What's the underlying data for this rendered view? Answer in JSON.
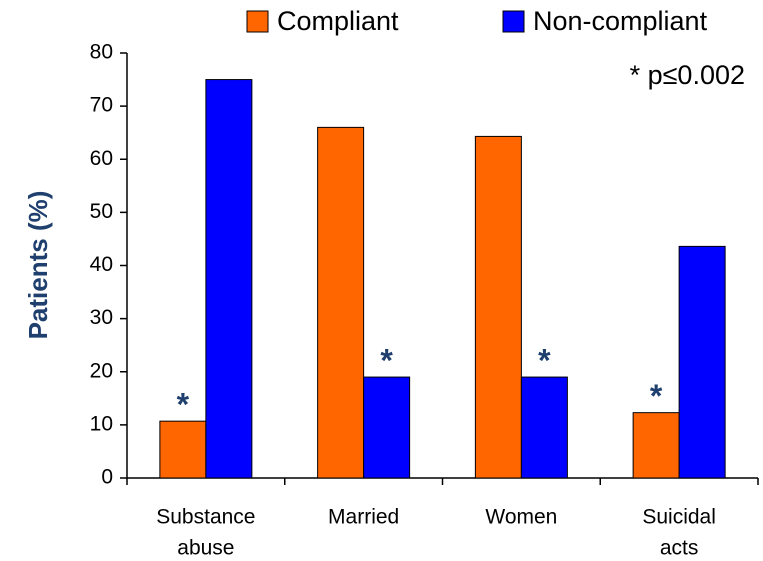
{
  "chart_data": {
    "type": "bar",
    "y_label": "Patients (%)",
    "categories": [
      [
        "Substance",
        "abuse"
      ],
      [
        "Married"
      ],
      [
        "Women"
      ],
      [
        "Suicidal",
        "acts"
      ]
    ],
    "series": [
      {
        "name": "Compliant",
        "color": "#ff6600",
        "values": [
          10.7,
          66,
          64.3,
          12.3
        ]
      },
      {
        "name": "Non-compliant",
        "color": "#0000ff",
        "values": [
          75,
          19,
          19,
          43.6
        ]
      }
    ],
    "ylim": [
      0,
      80
    ],
    "yticks": [
      0,
      10,
      20,
      30,
      40,
      50,
      60,
      70,
      80
    ],
    "annotation": "* p≤0.002",
    "markers": [
      {
        "text": "*",
        "series": 0,
        "index": 0
      },
      {
        "text": "*",
        "series": 1,
        "index": 1
      },
      {
        "text": "*",
        "series": 1,
        "index": 2
      },
      {
        "text": "*",
        "series": 0,
        "index": 3
      }
    ]
  }
}
